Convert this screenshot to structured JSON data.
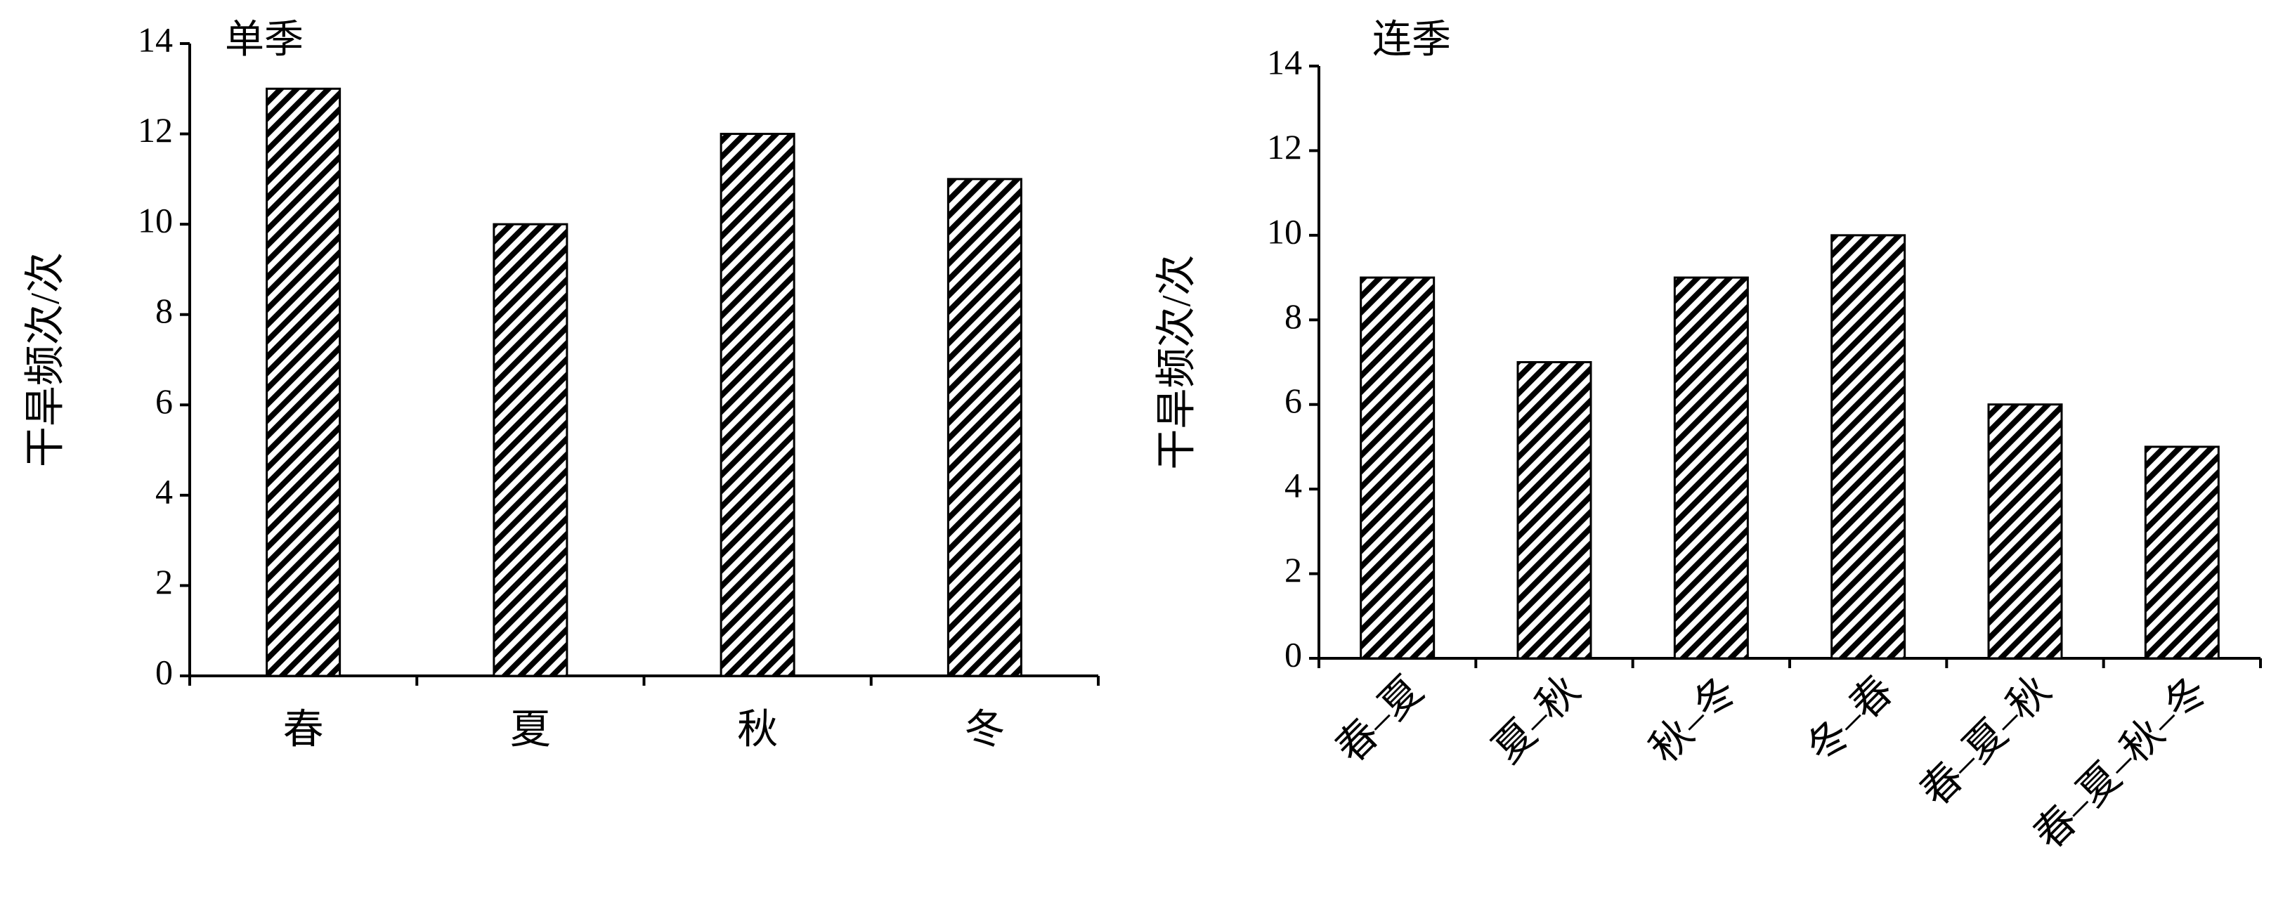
{
  "chart_data": [
    {
      "type": "bar",
      "title": "单季",
      "y_label": "干旱频次/次",
      "categories": [
        "春",
        "夏",
        "秋",
        "冬"
      ],
      "values": [
        13,
        10,
        12,
        11
      ],
      "ylim": [
        0,
        14
      ],
      "yticks": [
        0,
        2,
        4,
        6,
        8,
        10,
        12,
        14
      ],
      "color": "#000000",
      "rotate_labels": false
    },
    {
      "type": "bar",
      "title": "连季",
      "y_label": "干旱频次/次",
      "categories": [
        "春–夏",
        "夏–秋",
        "秋–冬",
        "冬–春",
        "春–夏–秋",
        "春–夏–秋–冬"
      ],
      "values": [
        9,
        7,
        9,
        10,
        6,
        5
      ],
      "ylim": [
        0,
        14
      ],
      "yticks": [
        0,
        2,
        4,
        6,
        8,
        10,
        12,
        14
      ],
      "color": "#000000",
      "rotate_labels": true
    }
  ]
}
